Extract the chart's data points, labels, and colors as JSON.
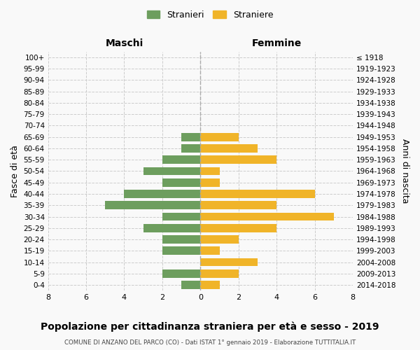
{
  "age_groups": [
    "0-4",
    "5-9",
    "10-14",
    "15-19",
    "20-24",
    "25-29",
    "30-34",
    "35-39",
    "40-44",
    "45-49",
    "50-54",
    "55-59",
    "60-64",
    "65-69",
    "70-74",
    "75-79",
    "80-84",
    "85-89",
    "90-94",
    "95-99",
    "100+"
  ],
  "birth_years": [
    "2014-2018",
    "2009-2013",
    "2004-2008",
    "1999-2003",
    "1994-1998",
    "1989-1993",
    "1984-1988",
    "1979-1983",
    "1974-1978",
    "1969-1973",
    "1964-1968",
    "1959-1963",
    "1954-1958",
    "1949-1953",
    "1944-1948",
    "1939-1943",
    "1934-1938",
    "1929-1933",
    "1924-1928",
    "1919-1923",
    "≤ 1918"
  ],
  "maschi": [
    1,
    2,
    0,
    2,
    2,
    3,
    2,
    5,
    4,
    2,
    3,
    2,
    1,
    1,
    0,
    0,
    0,
    0,
    0,
    0,
    0
  ],
  "femmine": [
    1,
    2,
    3,
    1,
    2,
    4,
    7,
    4,
    6,
    1,
    1,
    4,
    3,
    2,
    0,
    0,
    0,
    0,
    0,
    0,
    0
  ],
  "color_maschi": "#6d9e5e",
  "color_femmine": "#f0b429",
  "title": "Popolazione per cittadinanza straniera per età e sesso - 2019",
  "subtitle": "COMUNE DI ANZANO DEL PARCO (CO) - Dati ISTAT 1° gennaio 2019 - Elaborazione TUTTITALIA.IT",
  "xlabel_left": "Maschi",
  "xlabel_right": "Femmine",
  "ylabel_left": "Fasce di età",
  "ylabel_right": "Anni di nascita",
  "legend_maschi": "Stranieri",
  "legend_femmine": "Straniere",
  "xlim": 8,
  "background_color": "#f9f9f9",
  "grid_color": "#cccccc"
}
